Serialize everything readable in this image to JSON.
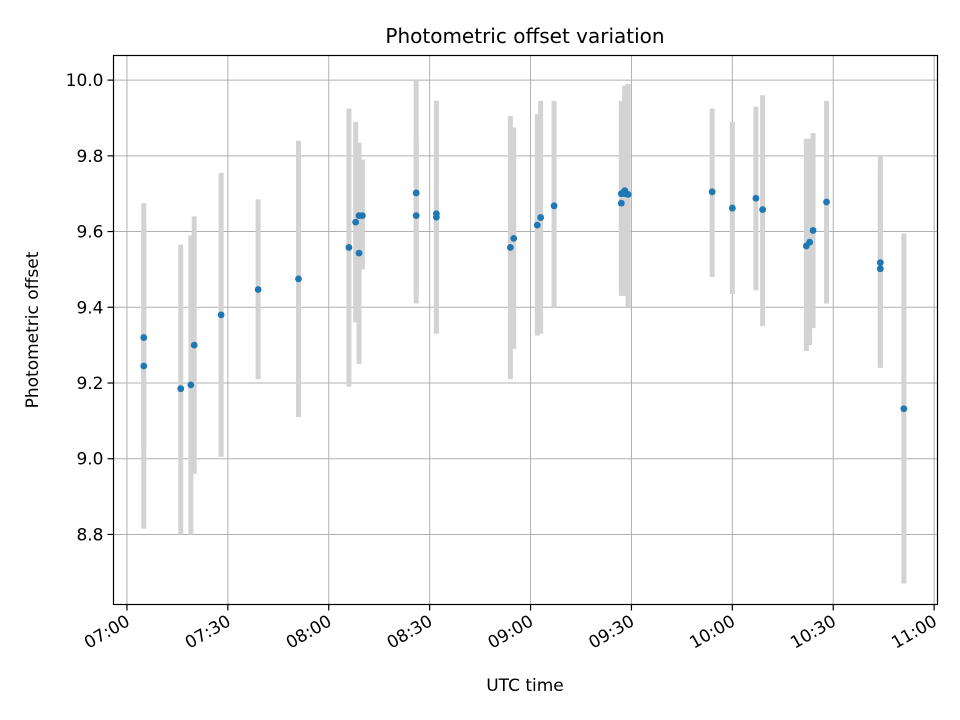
{
  "chart_data": {
    "type": "scatter",
    "title": "Photometric offset variation",
    "xlabel": "UTC time",
    "ylabel": "Photometric offset",
    "x_ticks": [
      "07:00",
      "07:30",
      "08:00",
      "08:30",
      "09:00",
      "09:30",
      "10:00",
      "10:30",
      "11:00"
    ],
    "y_ticks": [
      "8.8",
      "9.0",
      "9.2",
      "9.4",
      "9.6",
      "9.8",
      "10.0"
    ],
    "xlim": [
      "06:56",
      "11:01"
    ],
    "ylim": [
      8.615,
      10.065
    ],
    "grid": true,
    "marker_color": "#1f77b4",
    "errorbar_color": "#d3d3d3",
    "points": [
      {
        "x": "07:05",
        "y": 9.32,
        "ylow": 9.03,
        "yhigh": 9.61
      },
      {
        "x": "07:05",
        "y": 9.245,
        "ylow": 8.815,
        "yhigh": 9.675
      },
      {
        "x": "07:16",
        "y": 9.185,
        "ylow": 8.8,
        "yhigh": 9.565
      },
      {
        "x": "07:19",
        "y": 9.195,
        "ylow": 8.8,
        "yhigh": 9.59
      },
      {
        "x": "07:20",
        "y": 9.3,
        "ylow": 8.96,
        "yhigh": 9.64
      },
      {
        "x": "07:28",
        "y": 9.38,
        "ylow": 9.005,
        "yhigh": 9.755
      },
      {
        "x": "07:39",
        "y": 9.447,
        "ylow": 9.21,
        "yhigh": 9.685
      },
      {
        "x": "07:51",
        "y": 9.475,
        "ylow": 9.11,
        "yhigh": 9.84
      },
      {
        "x": "08:06",
        "y": 9.558,
        "ylow": 9.19,
        "yhigh": 9.925
      },
      {
        "x": "08:08",
        "y": 9.625,
        "ylow": 9.36,
        "yhigh": 9.89
      },
      {
        "x": "08:09",
        "y": 9.543,
        "ylow": 9.25,
        "yhigh": 9.835
      },
      {
        "x": "08:09",
        "y": 9.642,
        "ylow": 9.5,
        "yhigh": 9.79
      },
      {
        "x": "08:10",
        "y": 9.642,
        "ylow": 9.5,
        "yhigh": 9.79
      },
      {
        "x": "08:26",
        "y": 9.702,
        "ylow": 9.41,
        "yhigh": 10.0
      },
      {
        "x": "08:26",
        "y": 9.642,
        "ylow": 9.43,
        "yhigh": 9.85
      },
      {
        "x": "08:32",
        "y": 9.638,
        "ylow": 9.33,
        "yhigh": 9.945
      },
      {
        "x": "08:32",
        "y": 9.647,
        "ylow": 9.35,
        "yhigh": 9.945
      },
      {
        "x": "08:54",
        "y": 9.558,
        "ylow": 9.21,
        "yhigh": 9.905
      },
      {
        "x": "08:55",
        "y": 9.582,
        "ylow": 9.29,
        "yhigh": 9.875
      },
      {
        "x": "09:02",
        "y": 9.617,
        "ylow": 9.325,
        "yhigh": 9.91
      },
      {
        "x": "09:03",
        "y": 9.637,
        "ylow": 9.33,
        "yhigh": 9.945
      },
      {
        "x": "09:07",
        "y": 9.668,
        "ylow": 9.4,
        "yhigh": 9.945
      },
      {
        "x": "09:27",
        "y": 9.7,
        "ylow": 9.44,
        "yhigh": 9.945
      },
      {
        "x": "09:27",
        "y": 9.675,
        "ylow": 9.43,
        "yhigh": 9.925
      },
      {
        "x": "09:28",
        "y": 9.708,
        "ylow": 9.43,
        "yhigh": 9.96
      },
      {
        "x": "09:28",
        "y": 9.7,
        "ylow": 9.44,
        "yhigh": 9.985
      },
      {
        "x": "09:29",
        "y": 9.698,
        "ylow": 9.4,
        "yhigh": 9.99
      },
      {
        "x": "09:54",
        "y": 9.705,
        "ylow": 9.48,
        "yhigh": 9.925
      },
      {
        "x": "10:00",
        "y": 9.662,
        "ylow": 9.435,
        "yhigh": 9.89
      },
      {
        "x": "10:07",
        "y": 9.688,
        "ylow": 9.445,
        "yhigh": 9.93
      },
      {
        "x": "10:09",
        "y": 9.658,
        "ylow": 9.35,
        "yhigh": 9.96
      },
      {
        "x": "10:22",
        "y": 9.562,
        "ylow": 9.285,
        "yhigh": 9.845
      },
      {
        "x": "10:23",
        "y": 9.572,
        "ylow": 9.3,
        "yhigh": 9.845
      },
      {
        "x": "10:24",
        "y": 9.603,
        "ylow": 9.345,
        "yhigh": 9.86
      },
      {
        "x": "10:28",
        "y": 9.678,
        "ylow": 9.41,
        "yhigh": 9.945
      },
      {
        "x": "10:44",
        "y": 9.518,
        "ylow": 9.24,
        "yhigh": 9.8
      },
      {
        "x": "10:44",
        "y": 9.502,
        "ylow": 9.25,
        "yhigh": 9.755
      },
      {
        "x": "10:51",
        "y": 9.132,
        "ylow": 8.67,
        "yhigh": 9.595
      }
    ]
  }
}
